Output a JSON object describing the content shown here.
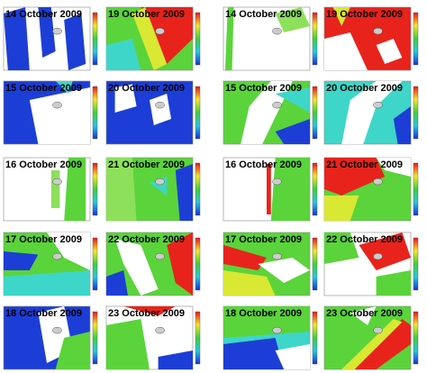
{
  "panels": [
    {
      "label": "14 October 2009"
    },
    {
      "label": "19 October 2009"
    },
    {
      "label": "14 October 2009"
    },
    {
      "label": "19 October 2009"
    },
    {
      "label": "15 October 2009"
    },
    {
      "label": "20 October 2009"
    },
    {
      "label": "15 October 2009"
    },
    {
      "label": "20 October 2009"
    },
    {
      "label": "16 October 2009"
    },
    {
      "label": "21 October 2009"
    },
    {
      "label": "16 October 2009"
    },
    {
      "label": "21 October 2009"
    },
    {
      "label": "17 October 2009"
    },
    {
      "label": "22 October 2009"
    },
    {
      "label": "17 October 2009"
    },
    {
      "label": "22 October 2009"
    },
    {
      "label": "18 October 2009"
    },
    {
      "label": "23 October 2009"
    },
    {
      "label": "18 October 2009"
    },
    {
      "label": "23 October 2009"
    }
  ]
}
